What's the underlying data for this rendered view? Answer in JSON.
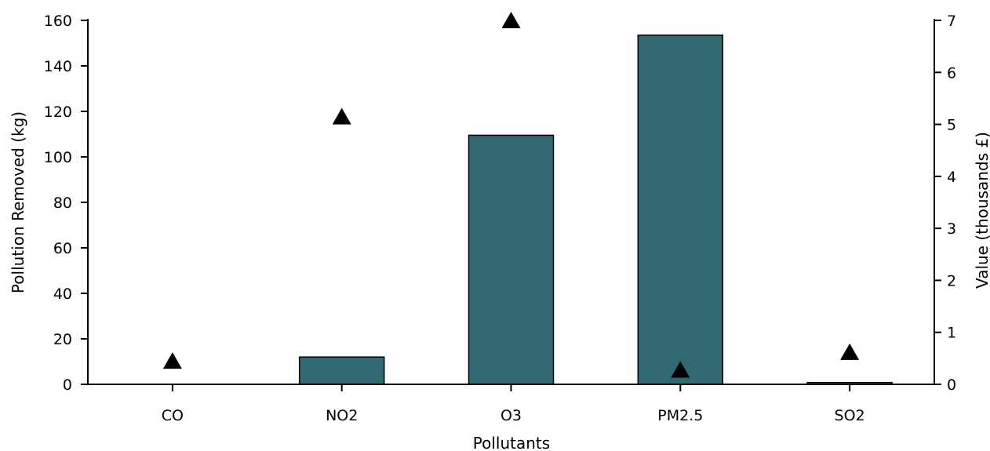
{
  "chart_data": {
    "type": "bar",
    "categories": [
      "CO",
      "NO2",
      "O3",
      "PM2.5",
      "SO2"
    ],
    "series": [
      {
        "axis": "left",
        "mark": "bar",
        "color": "#326872",
        "values": [
          0,
          12,
          109.5,
          153.5,
          0.8
        ]
      },
      {
        "axis": "right",
        "mark": "triangle",
        "color": "#000000",
        "values": [
          0.45,
          5.15,
          7.0,
          0.28,
          0.62
        ]
      }
    ],
    "xlabel": "Pollutants",
    "ylabel": "Pollution Removed (kg)",
    "y2label": "Value (thousands £)",
    "ylim": [
      0,
      160
    ],
    "y2lim": [
      0,
      7
    ],
    "yticks": [
      0,
      20,
      40,
      60,
      80,
      100,
      120,
      140,
      160
    ],
    "y2ticks": [
      0,
      1,
      2,
      3,
      4,
      5,
      6,
      7
    ],
    "grid": false,
    "legend": "none"
  }
}
